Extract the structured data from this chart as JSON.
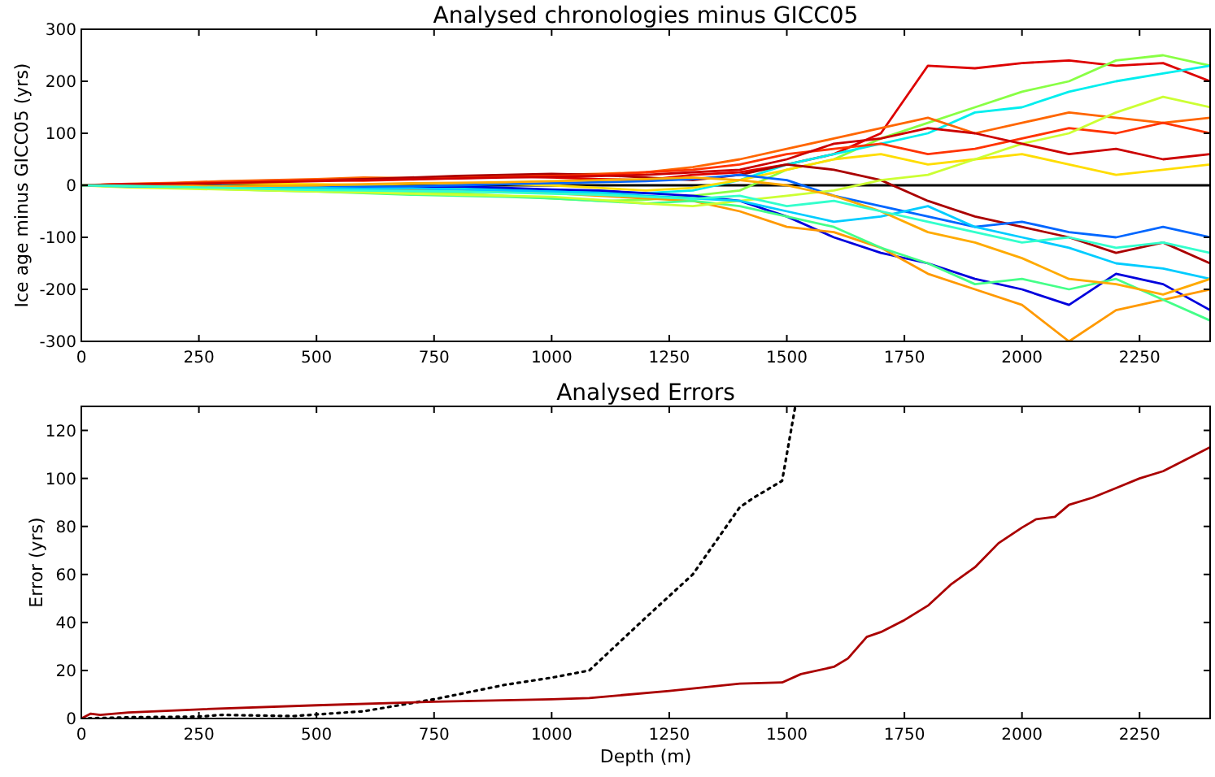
{
  "chart_data": [
    {
      "type": "line",
      "title": "Analysed chronologies minus GICC05",
      "ylabel": "Ice age minus GICC05 (yrs)",
      "xlim": [
        0,
        2400
      ],
      "ylim": [
        -300,
        300
      ],
      "xticks": [
        0,
        250,
        500,
        750,
        1000,
        1250,
        1500,
        1750,
        2000,
        2250
      ],
      "yticks": [
        -300,
        -200,
        -100,
        0,
        100,
        200,
        300
      ],
      "grid": false,
      "x": [
        0,
        100,
        200,
        300,
        400,
        500,
        600,
        700,
        800,
        900,
        1000,
        1100,
        1200,
        1300,
        1400,
        1500,
        1600,
        1700,
        1800,
        1900,
        2000,
        2100,
        2200,
        2300,
        2400
      ],
      "ref_lines": [
        {
          "axis": "y",
          "value": 0,
          "color": "#000000"
        }
      ],
      "series": [
        {
          "color": "#dd0000",
          "values": [
            0,
            2,
            3,
            5,
            8,
            10,
            12,
            14,
            15,
            18,
            15,
            12,
            10,
            20,
            25,
            40,
            60,
            100,
            230,
            225,
            235,
            240,
            230,
            235,
            200
          ]
        },
        {
          "color": "#88ff44",
          "values": [
            0,
            -3,
            -5,
            -4,
            -6,
            -8,
            -10,
            -12,
            -15,
            -20,
            -25,
            -30,
            -28,
            -20,
            -10,
            30,
            50,
            90,
            120,
            150,
            180,
            200,
            240,
            250,
            230
          ]
        },
        {
          "color": "#00eeee",
          "values": [
            0,
            -2,
            -4,
            -6,
            -5,
            -3,
            -2,
            -4,
            -6,
            -8,
            -10,
            -12,
            -15,
            -10,
            10,
            40,
            60,
            80,
            100,
            140,
            150,
            180,
            200,
            215,
            230
          ]
        },
        {
          "color": "#0000dd",
          "values": [
            null,
            null,
            null,
            null,
            null,
            null,
            -5,
            -3,
            -2,
            -5,
            -8,
            -10,
            -15,
            -20,
            -30,
            -60,
            -100,
            -130,
            -150,
            -180,
            -200,
            -230,
            -170,
            -190,
            -240
          ]
        },
        {
          "color": "#ff9900",
          "values": [
            0,
            -1,
            -3,
            -5,
            -4,
            -6,
            -8,
            -10,
            -8,
            -12,
            -15,
            -20,
            -25,
            -30,
            -50,
            -80,
            -90,
            -120,
            -170,
            -200,
            -230,
            -300,
            -240,
            -220,
            -200
          ]
        },
        {
          "color": "#ff6600",
          "values": [
            0,
            3,
            5,
            8,
            10,
            12,
            15,
            14,
            16,
            18,
            20,
            22,
            25,
            35,
            50,
            70,
            90,
            110,
            130,
            100,
            120,
            140,
            130,
            120,
            130
          ]
        },
        {
          "color": "#44ff88",
          "values": [
            0,
            -2,
            -5,
            -7,
            -10,
            -12,
            -15,
            -18,
            -20,
            -22,
            -25,
            -30,
            -35,
            -30,
            -40,
            -60,
            -80,
            -120,
            -150,
            -190,
            -180,
            -200,
            -180,
            -220,
            -260
          ]
        },
        {
          "color": "#ffdd00",
          "values": [
            null,
            null,
            null,
            4,
            3,
            2,
            1,
            3,
            4,
            2,
            0,
            -5,
            -10,
            -5,
            10,
            30,
            50,
            60,
            40,
            50,
            60,
            40,
            20,
            30,
            40
          ]
        },
        {
          "color": "#aa0000",
          "values": [
            0,
            1,
            3,
            5,
            8,
            10,
            12,
            15,
            18,
            20,
            22,
            20,
            15,
            10,
            20,
            40,
            30,
            10,
            -30,
            -60,
            -80,
            -100,
            -130,
            -110,
            -150
          ]
        },
        {
          "color": "#0066ff",
          "values": [
            null,
            null,
            null,
            -3,
            -5,
            -4,
            -3,
            -2,
            0,
            2,
            4,
            6,
            8,
            12,
            20,
            10,
            -20,
            -40,
            -60,
            -80,
            -70,
            -90,
            -100,
            -80,
            -100
          ]
        },
        {
          "color": "#ff3300",
          "values": [
            0,
            2,
            4,
            6,
            8,
            10,
            9,
            11,
            14,
            16,
            18,
            20,
            25,
            30,
            40,
            60,
            70,
            80,
            60,
            70,
            90,
            110,
            100,
            120,
            100
          ]
        },
        {
          "color": "#ccff33",
          "values": [
            0,
            -4,
            -6,
            -8,
            -10,
            -12,
            -14,
            -16,
            -18,
            -20,
            -22,
            -28,
            -35,
            -40,
            -30,
            -20,
            -10,
            10,
            20,
            50,
            80,
            100,
            140,
            170,
            150
          ]
        },
        {
          "color": "#00ccff",
          "values": [
            0,
            -2,
            -3,
            -1,
            -3,
            -5,
            -7,
            -6,
            -8,
            -10,
            -12,
            -15,
            -20,
            -25,
            -30,
            -50,
            -70,
            -60,
            -40,
            -80,
            -100,
            -120,
            -150,
            -160,
            -180
          ]
        },
        {
          "color": "#ffaa00",
          "values": [
            0,
            1,
            0,
            -2,
            -1,
            0,
            2,
            4,
            5,
            6,
            8,
            10,
            12,
            15,
            10,
            0,
            -20,
            -50,
            -90,
            -110,
            -140,
            -180,
            -190,
            -210,
            -180
          ]
        },
        {
          "color": "#cc0000",
          "values": [
            0,
            2,
            3,
            4,
            6,
            8,
            10,
            12,
            13,
            15,
            16,
            18,
            20,
            25,
            30,
            50,
            80,
            90,
            110,
            100,
            80,
            60,
            70,
            50,
            60
          ]
        },
        {
          "color": "#33ffcc",
          "values": [
            0,
            -1,
            -3,
            -5,
            -7,
            -9,
            -10,
            -11,
            -12,
            -14,
            -16,
            -18,
            -22,
            -26,
            -20,
            -40,
            -30,
            -50,
            -70,
            -90,
            -110,
            -100,
            -120,
            -110,
            -130
          ]
        }
      ]
    },
    {
      "type": "line",
      "title": "Analysed Errors",
      "xlabel": "Depth (m)",
      "ylabel": "Error (yrs)",
      "xlim": [
        0,
        2400
      ],
      "ylim": [
        0,
        130
      ],
      "xticks": [
        0,
        250,
        500,
        750,
        1000,
        1250,
        1500,
        1750,
        2000,
        2250
      ],
      "yticks": [
        0,
        20,
        40,
        60,
        80,
        100,
        120
      ],
      "grid": false,
      "series": [
        {
          "color": "#000000",
          "line_style": "dotted",
          "x": [
            0,
            100,
            250,
            300,
            450,
            600,
            750,
            900,
            1000,
            1080,
            1200,
            1300,
            1400,
            1430,
            1490,
            1518
          ],
          "values": [
            0,
            0.5,
            0.8,
            1.5,
            1,
            3,
            8,
            14,
            17,
            20,
            42,
            60,
            88,
            92,
            99,
            130
          ]
        },
        {
          "color": "#aa0000",
          "line_style": "solid",
          "x": [
            0,
            20,
            40,
            100,
            250,
            500,
            750,
            1000,
            1080,
            1250,
            1400,
            1490,
            1530,
            1600,
            1630,
            1670,
            1700,
            1750,
            1800,
            1850,
            1900,
            1950,
            2000,
            2030,
            2070,
            2100,
            2150,
            2200,
            2250,
            2300,
            2350,
            2400
          ],
          "values": [
            0,
            2,
            1.5,
            2.5,
            3.8,
            5.5,
            7,
            8,
            8.5,
            11.5,
            14.5,
            15,
            18.5,
            21.5,
            25,
            34,
            36,
            41,
            47,
            56,
            63,
            73,
            79.5,
            83,
            84,
            89,
            92,
            96,
            100,
            103,
            108,
            113
          ]
        }
      ]
    }
  ]
}
